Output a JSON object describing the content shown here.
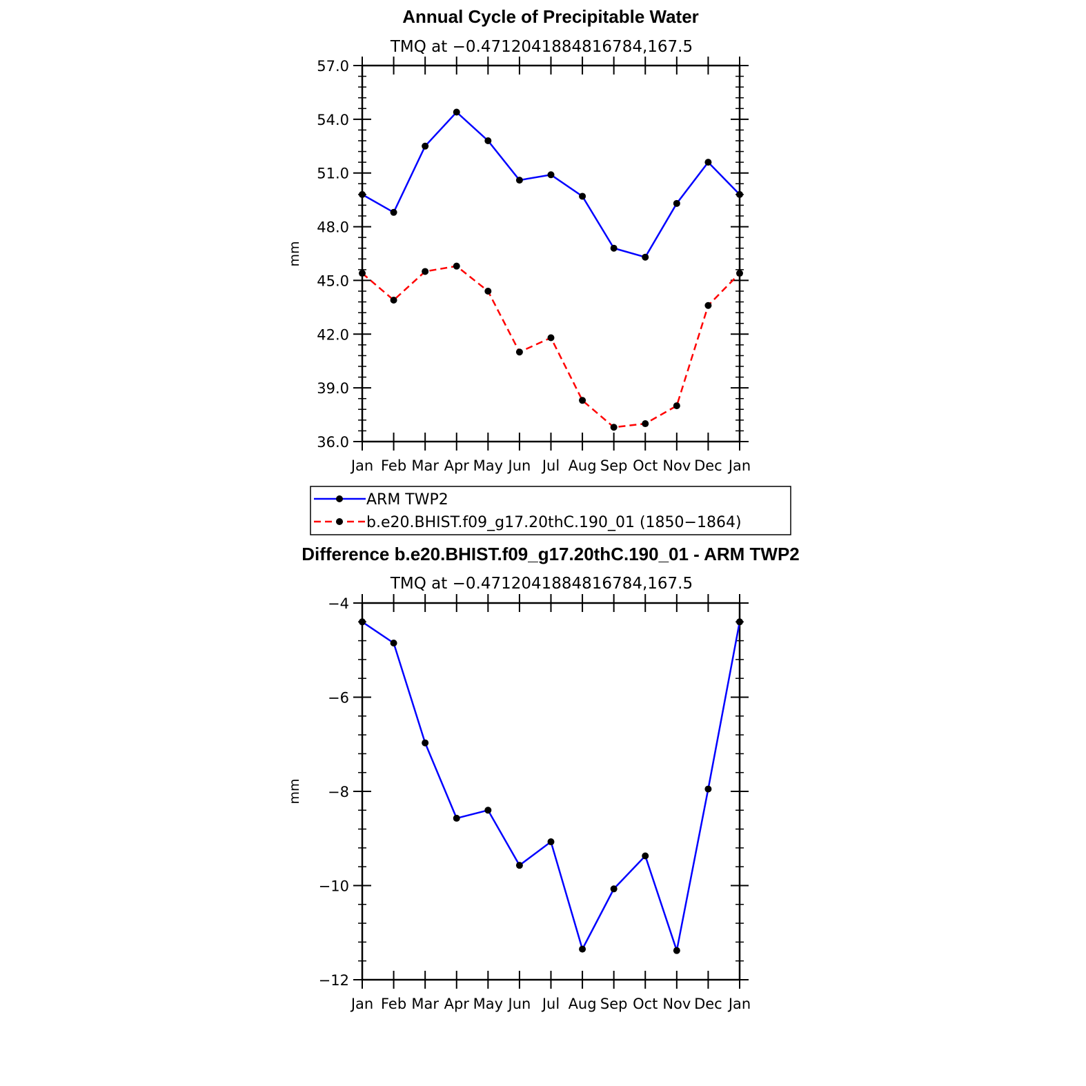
{
  "colors": {
    "series_1": "#0000ff",
    "series_2": "#ff0000",
    "marker": "#000000"
  },
  "chart_data": [
    {
      "type": "line",
      "title": "Annual Cycle of Precipitable Water",
      "subtitle": "TMQ at −0.4712041884816784,167.5",
      "xlabel": "",
      "ylabel": "mm",
      "categories": [
        "Jan",
        "Feb",
        "Mar",
        "Apr",
        "May",
        "Jun",
        "Jul",
        "Aug",
        "Sep",
        "Oct",
        "Nov",
        "Dec",
        "Jan"
      ],
      "ylim": [
        36.0,
        57.0
      ],
      "yticks": [
        36.0,
        39.0,
        42.0,
        45.0,
        48.0,
        51.0,
        54.0,
        57.0
      ],
      "ytick_labels": [
        "36.0",
        "39.0",
        "42.0",
        "45.0",
        "48.0",
        "51.0",
        "54.0",
        "57.0"
      ],
      "grid": false,
      "legend_position": "below",
      "series": [
        {
          "name": "ARM TWP2",
          "style": "solid",
          "color": "#0000ff",
          "values": [
            49.8,
            48.8,
            52.5,
            54.4,
            52.8,
            50.6,
            50.9,
            49.7,
            46.8,
            46.3,
            49.3,
            51.6,
            49.8
          ]
        },
        {
          "name": "b.e20.BHIST.f09_g17.20thC.190_01 (1850−1864)",
          "style": "dashed",
          "color": "#ff0000",
          "values": [
            45.4,
            43.9,
            45.5,
            45.8,
            44.4,
            41.0,
            41.8,
            38.3,
            36.8,
            37.0,
            38.0,
            43.6,
            45.4
          ]
        }
      ]
    },
    {
      "type": "line",
      "title": "Difference b.e20.BHIST.f09_g17.20thC.190_01 - ARM TWP2",
      "subtitle": "TMQ at −0.4712041884816784,167.5",
      "xlabel": "",
      "ylabel": "mm",
      "categories": [
        "Jan",
        "Feb",
        "Mar",
        "Apr",
        "May",
        "Jun",
        "Jul",
        "Aug",
        "Sep",
        "Oct",
        "Nov",
        "Dec",
        "Jan"
      ],
      "ylim": [
        -12,
        -4
      ],
      "yticks": [
        -12,
        -10,
        -8,
        -6,
        -4
      ],
      "ytick_labels": [
        "−12",
        "−10",
        "−8",
        "−6",
        "−4"
      ],
      "grid": false,
      "series": [
        {
          "style": "solid",
          "color": "#0000ff",
          "values": [
            -4.4,
            -4.85,
            -6.97,
            -8.57,
            -8.4,
            -9.57,
            -9.07,
            -11.35,
            -10.07,
            -9.37,
            -11.38,
            -7.95,
            -4.4
          ]
        }
      ]
    }
  ]
}
